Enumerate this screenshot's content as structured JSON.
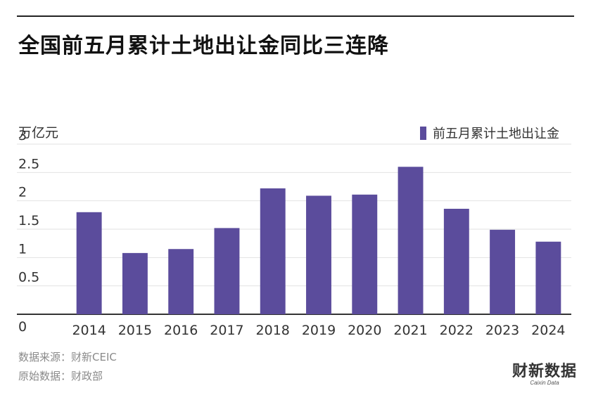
{
  "header": {
    "title": "全国前五月累计土地出让金同比三连降"
  },
  "chart_data": {
    "type": "bar",
    "title": "全国前五月累计土地出让金同比三连降",
    "ylabel": "万亿元",
    "xlabel": "",
    "categories": [
      "2014",
      "2015",
      "2016",
      "2017",
      "2018",
      "2019",
      "2020",
      "2021",
      "2022",
      "2023",
      "2024"
    ],
    "series": [
      {
        "name": "前五月累计土地出让金",
        "values": [
          1.8,
          1.08,
          1.15,
          1.52,
          2.22,
          2.09,
          2.11,
          2.6,
          1.86,
          1.49,
          1.28
        ]
      }
    ],
    "yticks": [
      "0",
      "0.5",
      "1",
      "1.5",
      "2",
      "2.5",
      "3"
    ],
    "ylim": [
      0,
      3
    ],
    "grid": true,
    "legend_position": "top-right",
    "bar_color": "#5b4c9c"
  },
  "footer": {
    "source": "数据来源：财新CEIC",
    "original_source": "原始数据：财政部",
    "logo": "财新数据",
    "logo_sub": "Caixin Data"
  }
}
